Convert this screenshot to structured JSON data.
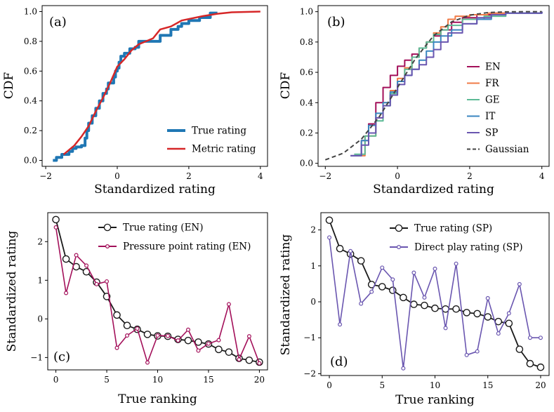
{
  "chart_data": [
    {
      "type": "line",
      "panel_label": "(a)",
      "xlabel": "Standardized rating",
      "ylabel": "CDF",
      "xlim": [
        -2.1,
        4.2
      ],
      "ylim": [
        -0.04,
        1.04
      ],
      "xticks": [
        -2,
        0,
        2,
        4
      ],
      "yticks": [
        0.0,
        0.2,
        0.4,
        0.6,
        0.8,
        1.0
      ],
      "xtick_labels": [
        "−2",
        "0",
        "2",
        "4"
      ],
      "ytick_labels": [
        "0.0",
        "0.2",
        "0.4",
        "0.6",
        "0.8",
        "1.0"
      ],
      "legend_position": "lower-right",
      "series": [
        {
          "name": "True rating",
          "color": "#1f77b4",
          "step": true,
          "x": [
            -1.8,
            -1.7,
            -1.55,
            -1.35,
            -1.25,
            -1.15,
            -1.0,
            -0.9,
            -0.85,
            -0.8,
            -0.7,
            -0.6,
            -0.5,
            -0.4,
            -0.3,
            -0.25,
            -0.1,
            -0.05,
            0.0,
            0.05,
            0.1,
            0.2,
            0.35,
            0.5,
            0.6,
            0.8,
            1.0,
            1.2,
            1.35,
            1.5,
            1.7,
            1.8,
            2.0,
            2.3,
            2.6,
            2.8
          ],
          "y": [
            0.0,
            0.02,
            0.04,
            0.06,
            0.08,
            0.09,
            0.1,
            0.15,
            0.2,
            0.25,
            0.3,
            0.35,
            0.4,
            0.45,
            0.48,
            0.52,
            0.56,
            0.6,
            0.62,
            0.66,
            0.7,
            0.72,
            0.75,
            0.76,
            0.8,
            0.8,
            0.8,
            0.84,
            0.84,
            0.88,
            0.9,
            0.92,
            0.94,
            0.96,
            0.99,
            0.99
          ]
        },
        {
          "name": "Metric rating",
          "color": "#d62728",
          "step": false,
          "x": [
            -1.5,
            -1.2,
            -1.0,
            -0.8,
            -0.6,
            -0.4,
            -0.2,
            0.0,
            0.2,
            0.4,
            0.6,
            0.8,
            1.0,
            1.2,
            1.5,
            1.8,
            2.0,
            2.4,
            2.8,
            3.2,
            4.0
          ],
          "y": [
            0.04,
            0.1,
            0.16,
            0.23,
            0.33,
            0.42,
            0.52,
            0.63,
            0.68,
            0.74,
            0.78,
            0.8,
            0.82,
            0.88,
            0.9,
            0.94,
            0.95,
            0.97,
            0.985,
            0.995,
            1.0
          ]
        }
      ]
    },
    {
      "type": "line",
      "panel_label": "(b)",
      "xlabel": "Standardized rating",
      "ylabel": "CDF",
      "xlim": [
        -2.2,
        4.2
      ],
      "ylim": [
        -0.02,
        1.04
      ],
      "xticks": [
        -2,
        0,
        2,
        4
      ],
      "yticks": [
        0.0,
        0.2,
        0.4,
        0.6,
        0.8,
        1.0
      ],
      "xtick_labels": [
        "−2",
        "0",
        "2",
        "4"
      ],
      "ytick_labels": [
        "0.0",
        "0.2",
        "0.4",
        "0.6",
        "0.8",
        "1.0"
      ],
      "legend_position": "right",
      "series": [
        {
          "name": "EN",
          "color": "#a3105a",
          "step": true,
          "x": [
            -1.3,
            -1.0,
            -0.8,
            -0.6,
            -0.4,
            -0.2,
            0.0,
            0.2,
            0.4,
            0.6,
            0.8,
            1.0,
            1.2,
            1.5,
            1.8,
            2.2,
            2.6,
            3.0
          ],
          "y": [
            0.05,
            0.15,
            0.26,
            0.4,
            0.5,
            0.58,
            0.64,
            0.68,
            0.72,
            0.76,
            0.8,
            0.84,
            0.88,
            0.93,
            0.96,
            0.98,
            0.99,
            1.0
          ]
        },
        {
          "name": "FR",
          "color": "#f07b47",
          "step": true,
          "x": [
            -1.2,
            -0.9,
            -0.6,
            -0.4,
            -0.2,
            0.0,
            0.2,
            0.4,
            0.6,
            0.8,
            1.0,
            1.2,
            1.4,
            1.6,
            2.0,
            2.5,
            3.0
          ],
          "y": [
            0.05,
            0.18,
            0.3,
            0.4,
            0.48,
            0.56,
            0.63,
            0.7,
            0.76,
            0.8,
            0.86,
            0.9,
            0.95,
            0.97,
            0.98,
            0.99,
            1.0
          ]
        },
        {
          "name": "GE",
          "color": "#5cba96",
          "step": true,
          "x": [
            -1.2,
            -0.9,
            -0.6,
            -0.4,
            -0.2,
            0.0,
            0.2,
            0.4,
            0.6,
            0.8,
            1.0,
            1.2,
            1.4,
            1.8,
            2.4,
            3.0,
            4.0
          ],
          "y": [
            0.06,
            0.18,
            0.28,
            0.38,
            0.46,
            0.54,
            0.62,
            0.7,
            0.76,
            0.8,
            0.85,
            0.88,
            0.91,
            0.95,
            0.97,
            0.99,
            1.0
          ]
        },
        {
          "name": "IT",
          "color": "#3a86c0",
          "step": true,
          "x": [
            -1.3,
            -1.0,
            -0.8,
            -0.6,
            -0.4,
            -0.2,
            0.0,
            0.2,
            0.4,
            0.6,
            0.8,
            1.0,
            1.2,
            1.5,
            1.8,
            2.2,
            2.6,
            3.0,
            4.0
          ],
          "y": [
            0.05,
            0.15,
            0.25,
            0.33,
            0.4,
            0.47,
            0.54,
            0.58,
            0.62,
            0.68,
            0.74,
            0.8,
            0.84,
            0.88,
            0.92,
            0.95,
            0.98,
            0.99,
            1.0
          ]
        },
        {
          "name": "SP",
          "color": "#6a56b0",
          "step": true,
          "x": [
            -1.3,
            -1.0,
            -0.8,
            -0.6,
            -0.4,
            -0.2,
            0.0,
            0.2,
            0.4,
            0.6,
            0.8,
            1.0,
            1.2,
            1.4,
            1.8,
            2.2,
            2.6,
            3.0,
            4.0
          ],
          "y": [
            0.05,
            0.12,
            0.2,
            0.3,
            0.38,
            0.45,
            0.52,
            0.58,
            0.62,
            0.65,
            0.7,
            0.75,
            0.8,
            0.86,
            0.92,
            0.96,
            0.98,
            0.99,
            1.0
          ]
        },
        {
          "name": "Gaussian",
          "color": "#444444",
          "dash": true,
          "step": false,
          "x": [
            -2.0,
            -1.5,
            -1.0,
            -0.5,
            0.0,
            0.5,
            1.0,
            1.5,
            2.0,
            2.5,
            3.0,
            3.5,
            4.0
          ],
          "y": [
            0.023,
            0.067,
            0.159,
            0.309,
            0.5,
            0.691,
            0.841,
            0.933,
            0.977,
            0.994,
            0.999,
            1.0,
            1.0
          ]
        }
      ]
    },
    {
      "type": "line",
      "panel_label": "(c)",
      "xlabel": "True ranking",
      "ylabel": "Standardized rating",
      "xlim": [
        -0.8,
        20.8
      ],
      "ylim": [
        -1.32,
        2.75
      ],
      "xticks": [
        0,
        5,
        10,
        15,
        20
      ],
      "yticks": [
        -1,
        0,
        1,
        2
      ],
      "xtick_labels": [
        "0",
        "5",
        "10",
        "15",
        "20"
      ],
      "ytick_labels": [
        "−1",
        "0",
        "1",
        "2"
      ],
      "legend_position": "top-right",
      "series": [
        {
          "name": "True rating (EN)",
          "color": "#1a1a1a",
          "marker": "large-open-circle",
          "x": [
            0,
            1,
            2,
            3,
            4,
            5,
            6,
            7,
            8,
            9,
            10,
            11,
            12,
            13,
            14,
            15,
            16,
            17,
            18,
            19,
            20
          ],
          "y": [
            2.57,
            1.55,
            1.35,
            1.22,
            0.95,
            0.58,
            0.1,
            -0.17,
            -0.27,
            -0.4,
            -0.44,
            -0.45,
            -0.53,
            -0.56,
            -0.6,
            -0.65,
            -0.79,
            -0.86,
            -1.02,
            -1.07,
            -1.12
          ]
        },
        {
          "name": "Pressure point rating (EN)",
          "color": "#a3105a",
          "marker": "small-open-circle",
          "x": [
            0,
            1,
            2,
            3,
            4,
            5,
            6,
            7,
            8,
            9,
            10,
            11,
            12,
            13,
            14,
            15,
            16,
            17,
            18,
            19,
            20
          ],
          "y": [
            2.37,
            0.67,
            1.65,
            1.38,
            0.9,
            0.97,
            -0.75,
            -0.43,
            -0.25,
            -1.13,
            -0.43,
            -0.44,
            -0.56,
            -0.28,
            -0.82,
            -0.64,
            -0.55,
            0.38,
            -1.05,
            -0.45,
            -1.15
          ]
        }
      ]
    },
    {
      "type": "line",
      "panel_label": "(d)",
      "xlabel": "True ranking",
      "ylabel": "Standardized rating",
      "xlim": [
        -0.8,
        20.8
      ],
      "ylim": [
        -2.05,
        2.48
      ],
      "xticks": [
        0,
        5,
        10,
        15,
        20
      ],
      "yticks": [
        -2,
        -1,
        0,
        1,
        2
      ],
      "xtick_labels": [
        "0",
        "5",
        "10",
        "15",
        "20"
      ],
      "ytick_labels": [
        "−2",
        "−1",
        "0",
        "1",
        "2"
      ],
      "legend_position": "top-right",
      "series": [
        {
          "name": "True rating (SP)",
          "color": "#1a1a1a",
          "marker": "large-open-circle",
          "x": [
            0,
            1,
            2,
            3,
            4,
            5,
            6,
            7,
            8,
            9,
            10,
            11,
            12,
            13,
            14,
            15,
            16,
            17,
            18,
            19,
            20
          ],
          "y": [
            2.27,
            1.48,
            1.33,
            1.14,
            0.48,
            0.42,
            0.32,
            0.12,
            -0.07,
            -0.1,
            -0.18,
            -0.2,
            -0.2,
            -0.3,
            -0.33,
            -0.42,
            -0.55,
            -0.6,
            -1.32,
            -1.72,
            -1.82
          ]
        },
        {
          "name": "Direct play rating (SP)",
          "color": "#6a56b0",
          "marker": "small-open-circle",
          "x": [
            0,
            1,
            2,
            3,
            4,
            5,
            6,
            7,
            8,
            9,
            10,
            11,
            12,
            13,
            14,
            15,
            16,
            17,
            18,
            19,
            20
          ],
          "y": [
            1.79,
            -0.63,
            1.41,
            -0.05,
            0.28,
            0.95,
            0.62,
            -1.85,
            0.81,
            0.12,
            0.92,
            -0.73,
            1.06,
            -1.48,
            -1.38,
            0.1,
            -0.88,
            -0.32,
            0.49,
            -1.0,
            -1.0
          ]
        }
      ]
    }
  ]
}
